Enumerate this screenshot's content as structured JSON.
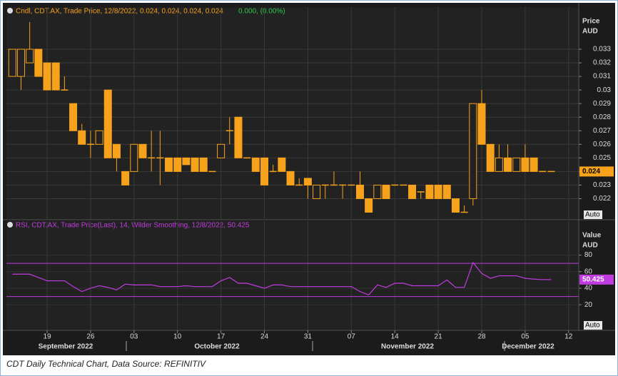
{
  "chart_data": [
    {
      "type": "candlestick",
      "header": "Cndl, CDT.AX, Trade Price, 12/8/2022, 0.024, 0.024, 0.024, 0.024",
      "change": "0.000, (0.00%)",
      "y_label_top": "Price",
      "y_label_bottom": "AUD",
      "auto_label": "Auto",
      "color": "#f7a21b",
      "change_color": "#2ec84a",
      "categories": [
        null,
        null,
        null,
        null,
        "19",
        null,
        null,
        null,
        null,
        "26",
        null,
        null,
        null,
        null,
        "03",
        null,
        null,
        null,
        null,
        "10",
        null,
        null,
        null,
        null,
        "17",
        null,
        null,
        null,
        null,
        "24",
        null,
        null,
        null,
        null,
        "31",
        null,
        null,
        null,
        null,
        "07",
        null,
        null,
        null,
        null,
        "14",
        null,
        null,
        null,
        null,
        "21",
        null,
        null,
        null,
        null,
        "28",
        null,
        null,
        null,
        null,
        "05",
        null,
        null,
        null,
        null,
        "12"
      ],
      "month_labels": [
        "September 2022",
        "October 2022",
        "November 2022",
        "December 2022"
      ],
      "open": [
        0.031,
        0.031,
        0.032,
        0.033,
        0.032,
        0.032,
        0.03,
        0.029,
        0.027,
        0.026,
        0.026,
        0.03,
        0.026,
        0.024,
        0.024,
        0.026,
        0.025,
        0.025,
        0.025,
        0.025,
        0.025,
        0.025,
        0.025,
        0.024,
        0.025,
        0.027,
        0.028,
        0.025,
        0.025,
        0.025,
        0.024,
        0.025,
        0.024,
        0.023,
        0.0235,
        0.022,
        0.023,
        0.023,
        0.023,
        0.023,
        0.023,
        0.022,
        0.022,
        0.023,
        0.023,
        0.023,
        0.023,
        0.0225,
        0.023,
        0.023,
        0.023,
        0.022,
        0.021,
        0.022,
        0.029,
        0.026,
        0.024,
        0.025,
        0.024,
        0.025,
        0.025,
        0.024,
        0.024,
        null,
        null
      ],
      "high": [
        0.033,
        0.033,
        0.035,
        0.033,
        0.032,
        0.032,
        0.031,
        0.029,
        0.0275,
        0.027,
        0.027,
        0.03,
        0.026,
        0.024,
        0.026,
        0.026,
        0.027,
        0.027,
        0.025,
        0.025,
        0.025,
        0.025,
        0.025,
        0.024,
        0.026,
        0.028,
        0.028,
        0.025,
        0.025,
        0.025,
        0.0245,
        0.025,
        0.024,
        0.0235,
        0.0235,
        0.023,
        0.023,
        0.024,
        0.023,
        0.023,
        0.024,
        0.022,
        0.023,
        0.023,
        0.023,
        0.023,
        0.023,
        0.0225,
        0.023,
        0.023,
        0.023,
        0.022,
        0.0215,
        0.029,
        0.03,
        0.026,
        0.026,
        0.026,
        0.025,
        0.026,
        0.025,
        0.024,
        0.024,
        null,
        null
      ],
      "low": [
        0.031,
        0.03,
        0.032,
        0.031,
        0.03,
        0.03,
        0.03,
        0.027,
        0.026,
        0.025,
        0.026,
        0.025,
        0.024,
        0.023,
        0.024,
        0.025,
        0.024,
        0.023,
        0.024,
        0.024,
        0.0245,
        0.024,
        0.024,
        0.024,
        0.025,
        0.026,
        0.025,
        0.025,
        0.024,
        0.023,
        0.024,
        0.024,
        0.023,
        0.023,
        0.022,
        0.022,
        0.022,
        0.023,
        0.022,
        0.023,
        0.022,
        0.021,
        0.022,
        0.022,
        0.023,
        0.023,
        0.022,
        0.022,
        0.022,
        0.022,
        0.022,
        0.021,
        0.021,
        0.0215,
        0.026,
        0.024,
        0.024,
        0.024,
        0.024,
        0.024,
        0.024,
        0.024,
        0.024,
        null,
        null
      ],
      "close": [
        0.033,
        0.033,
        0.033,
        0.031,
        0.03,
        0.03,
        0.03,
        0.027,
        0.026,
        0.026,
        0.027,
        0.025,
        0.025,
        0.023,
        0.026,
        0.025,
        0.025,
        0.025,
        0.024,
        0.024,
        0.0245,
        0.024,
        0.024,
        0.024,
        0.026,
        0.027,
        0.025,
        0.025,
        0.024,
        0.023,
        0.024,
        0.024,
        0.023,
        0.023,
        0.023,
        0.023,
        0.023,
        0.023,
        0.023,
        0.023,
        0.022,
        0.021,
        0.023,
        0.022,
        0.023,
        0.023,
        0.022,
        0.0225,
        0.022,
        0.022,
        0.022,
        0.021,
        0.021,
        0.029,
        0.026,
        0.024,
        0.025,
        0.024,
        0.025,
        0.024,
        0.024,
        0.024,
        0.024,
        null,
        null
      ],
      "ylim": [
        0.0205,
        0.0361
      ],
      "yticks": [
        0.022,
        0.023,
        0.024,
        0.025,
        0.026,
        0.027,
        0.028,
        0.029,
        0.03,
        0.031,
        0.032,
        0.033
      ],
      "grid": true
    },
    {
      "type": "line",
      "header": "RSI, CDT.AX, Trade Price(Last), 14, Wilder Smoothing, 12/8/2022, 50.425",
      "y_label_top": "Value",
      "y_label_bottom": "AUD",
      "auto_label": "Auto",
      "color": "#c13ce0",
      "values": [
        57,
        57,
        57,
        53,
        49,
        49,
        49,
        42,
        36,
        40,
        43,
        41,
        38,
        45,
        44,
        44,
        44,
        42,
        42,
        42,
        43,
        42,
        42,
        42,
        49,
        53,
        46,
        46,
        43,
        40,
        44,
        44,
        42,
        42,
        42,
        42,
        42,
        42,
        42,
        42,
        36,
        32,
        44,
        41,
        46,
        46,
        43,
        43,
        43,
        43,
        50,
        41,
        41,
        71,
        58,
        52,
        55,
        55,
        55,
        52,
        51,
        50.4,
        50.425,
        null,
        null
      ],
      "bands": [
        70,
        30
      ],
      "ylim": [
        -10,
        121
      ],
      "yticks": [
        20,
        40,
        60,
        80
      ],
      "grid": true
    }
  ],
  "caption": "CDT Daily Technical Chart, Data Source: REFINITIV"
}
